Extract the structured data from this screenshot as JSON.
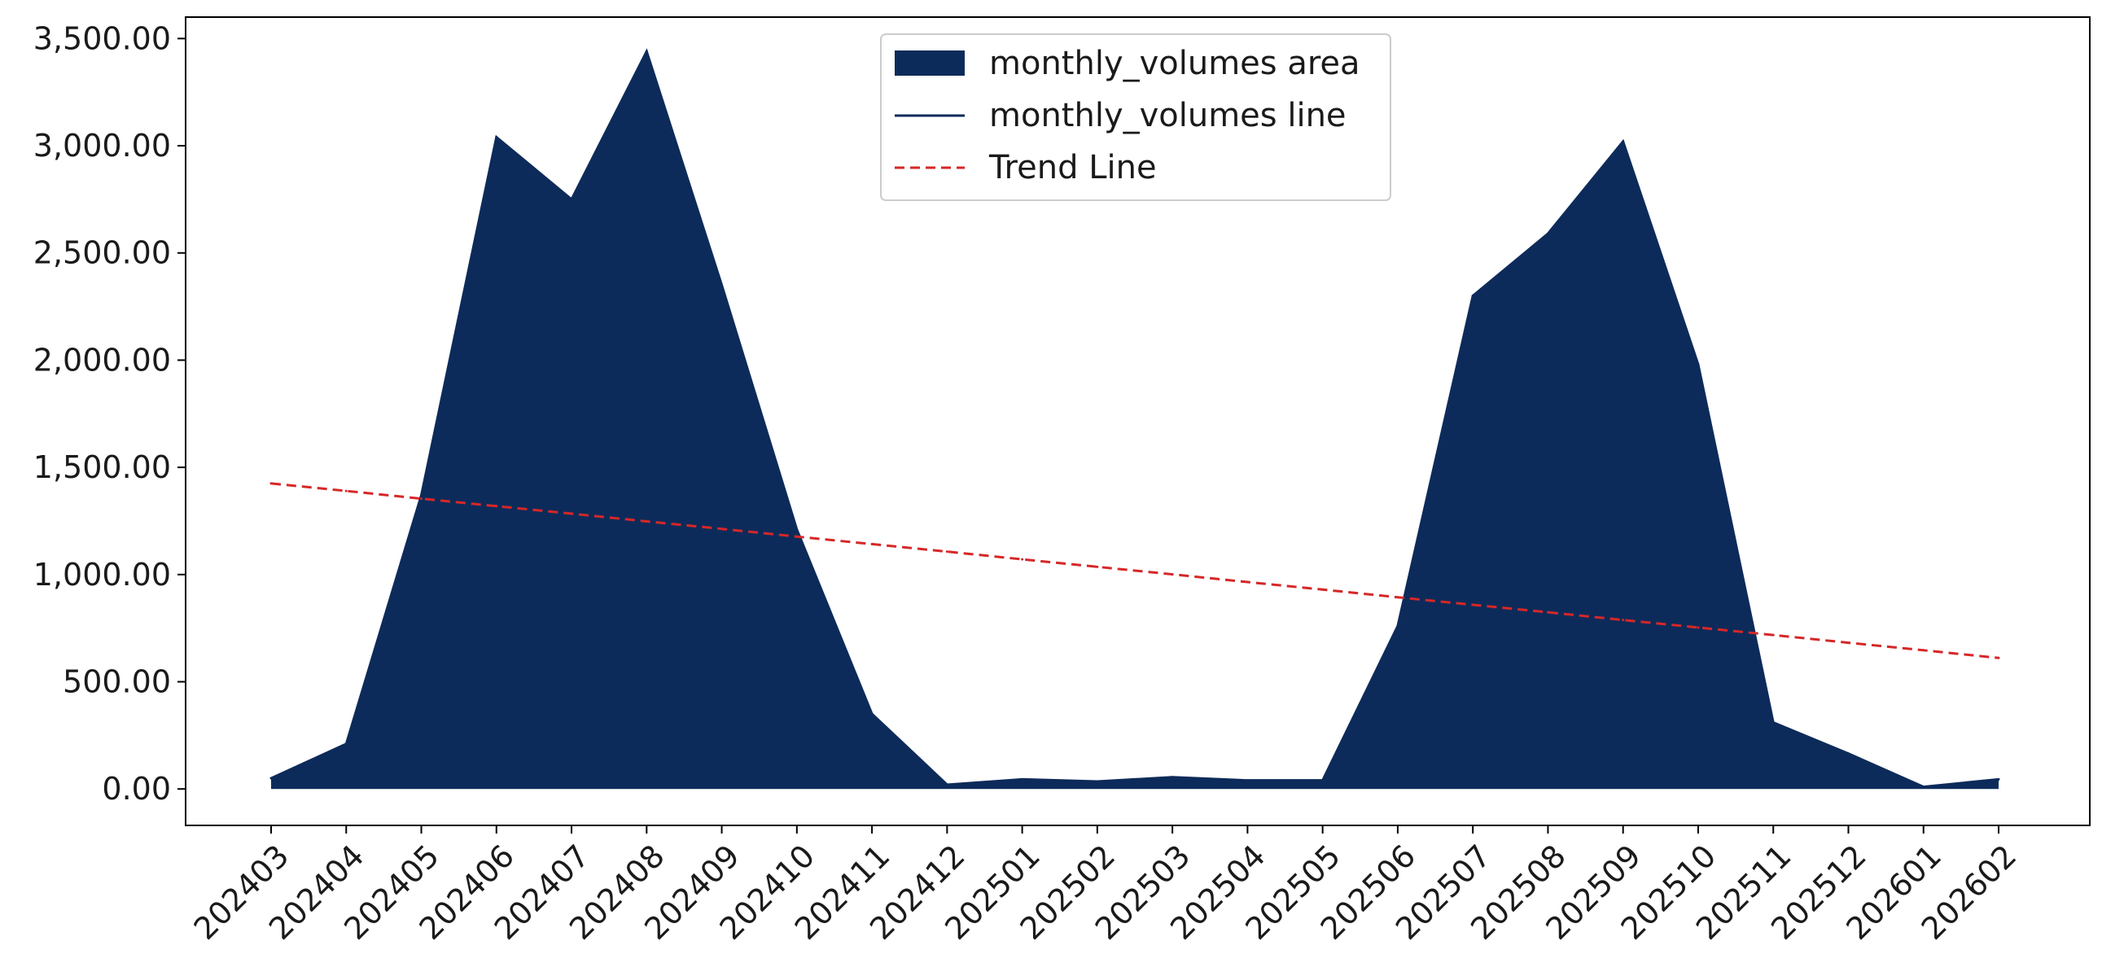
{
  "chart_data": {
    "type": "area",
    "title": "",
    "xlabel": "",
    "ylabel": "",
    "categories": [
      "202403",
      "202404",
      "202405",
      "202406",
      "202407",
      "202408",
      "202409",
      "202410",
      "202411",
      "202412",
      "202501",
      "202502",
      "202503",
      "202504",
      "202505",
      "202506",
      "202507",
      "202508",
      "202509",
      "202510",
      "202511",
      "202512",
      "202601",
      "202602"
    ],
    "series": [
      {
        "name": "monthly_volumes area",
        "kind": "area",
        "color": "#0d2b5a",
        "values": [
          50,
          210,
          1370,
          3040,
          2750,
          3440,
          2350,
          1210,
          350,
          20,
          45,
          35,
          55,
          40,
          40,
          760,
          2300,
          2590,
          3020,
          1980,
          310,
          165,
          10,
          45
        ]
      },
      {
        "name": "monthly_volumes line",
        "kind": "line",
        "color": "#0d2b5a",
        "values": [
          50,
          210,
          1370,
          3040,
          2750,
          3440,
          2350,
          1210,
          350,
          20,
          45,
          35,
          55,
          40,
          40,
          760,
          2300,
          2590,
          3020,
          1980,
          310,
          165,
          10,
          45
        ]
      },
      {
        "name": "Trend Line",
        "kind": "dashed-line",
        "color": "#d62728",
        "values": [
          1425,
          1390,
          1354,
          1319,
          1284,
          1248,
          1213,
          1177,
          1142,
          1107,
          1071,
          1036,
          1001,
          965,
          930,
          894,
          859,
          824,
          788,
          753,
          718,
          682,
          647,
          611
        ]
      }
    ],
    "ylim": [
      -170,
      3600
    ],
    "yticks": [
      0,
      500,
      1000,
      1500,
      2000,
      2500,
      3000,
      3500
    ],
    "ytick_labels": [
      "0.00",
      "500.00",
      "1,000.00",
      "1,500.00",
      "2,000.00",
      "2,500.00",
      "3,000.00",
      "3,500.00"
    ],
    "grid": false,
    "legend_position": "top-center"
  }
}
